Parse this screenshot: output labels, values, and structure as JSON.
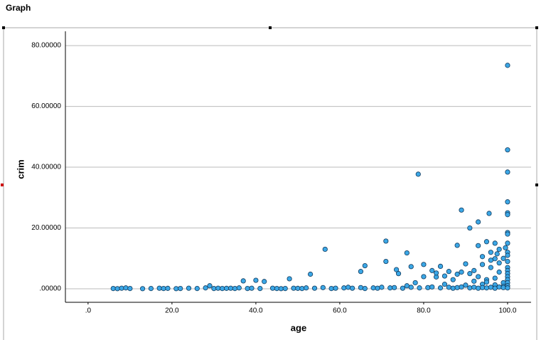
{
  "chart_data": {
    "type": "scatter",
    "title": "Graph",
    "xlabel": "age",
    "ylabel": "crim",
    "x": [
      100,
      100,
      100,
      78.7,
      100,
      100,
      100,
      95.6,
      89,
      91,
      93,
      100,
      100,
      100,
      97,
      95,
      71,
      56.5,
      76,
      88,
      93,
      98,
      96,
      100,
      100,
      99,
      94,
      97,
      90,
      84,
      86,
      82,
      80,
      77,
      73.5,
      74,
      65,
      66,
      71,
      53,
      48,
      40,
      37,
      42,
      29,
      88,
      91,
      93,
      95,
      97,
      99,
      100,
      100,
      100,
      100,
      100,
      100,
      100,
      100,
      96,
      98,
      92,
      89,
      85,
      83,
      80,
      78,
      76,
      85,
      90,
      94,
      97,
      99,
      83,
      87,
      92,
      95,
      98,
      94,
      96,
      97.5,
      99.5,
      6,
      7,
      8,
      9,
      10,
      13,
      15,
      17,
      18,
      19,
      21,
      22,
      24,
      26,
      28,
      30,
      31,
      32,
      33,
      34,
      35,
      36,
      38,
      39,
      41,
      44,
      45,
      46,
      47,
      49,
      50,
      51,
      52,
      54,
      56,
      58,
      59,
      61,
      62,
      63,
      65,
      66,
      68,
      69,
      70,
      72,
      73,
      75,
      77,
      79,
      81,
      82,
      84,
      86,
      87,
      88,
      89,
      91,
      92,
      93,
      94,
      95,
      96,
      97,
      98,
      99,
      100
    ],
    "values": [
      73.5,
      45.7,
      38.4,
      37.7,
      28.6,
      25,
      24.4,
      24.8,
      25.9,
      20,
      22,
      18.5,
      18,
      15,
      15,
      15.5,
      15.7,
      13,
      11.8,
      14.3,
      14.2,
      13,
      12,
      12,
      11,
      10,
      10.6,
      9.9,
      8.2,
      7.4,
      5.7,
      6,
      8,
      7.3,
      6.3,
      5,
      5.7,
      7.6,
      9,
      4.8,
      3.3,
      2.8,
      2.6,
      2.4,
      1,
      4.8,
      5,
      4,
      3,
      3.5,
      2,
      9,
      7,
      6,
      5,
      4,
      3,
      2,
      1,
      7,
      8.5,
      6,
      5.5,
      4.2,
      3.9,
      4,
      2,
      1,
      1.5,
      1.2,
      1.5,
      1.3,
      0.8,
      5.2,
      3,
      2.5,
      2.2,
      5.5,
      8,
      9.4,
      11.5,
      13.5,
      0.1,
      0.05,
      0.2,
      0.3,
      0.1,
      0.05,
      0.1,
      0.2,
      0.1,
      0.15,
      0.05,
      0.1,
      0.2,
      0.1,
      0.3,
      0.1,
      0.2,
      0.1,
      0.15,
      0.2,
      0.1,
      0.3,
      0.1,
      0.2,
      0.1,
      0.2,
      0.1,
      0.05,
      0.1,
      0.2,
      0.15,
      0.1,
      0.3,
      0.2,
      0.4,
      0.1,
      0.2,
      0.3,
      0.5,
      0.2,
      0.4,
      0.1,
      0.3,
      0.2,
      0.5,
      0.3,
      0.4,
      0.2,
      0.5,
      0.3,
      0.4,
      0.6,
      0.3,
      0.5,
      0.2,
      0.4,
      0.6,
      0.3,
      0.5,
      0.2,
      0.4,
      0.3,
      0.5,
      0.2,
      0.6,
      0.4,
      0.3
    ],
    "color": "#3ba7e6",
    "xlim": [
      -5.4,
      105.6
    ],
    "ylim": [
      -4.44,
      84.7
    ],
    "xticks": [
      {
        "value": 0,
        "label": ".0"
      },
      {
        "value": 20,
        "label": "20.0"
      },
      {
        "value": 40,
        "label": "40.0"
      },
      {
        "value": 60,
        "label": "60.0"
      },
      {
        "value": 80,
        "label": "80.0"
      },
      {
        "value": 100,
        "label": "100.0"
      }
    ],
    "yticks": [
      {
        "value": 0,
        "label": ".00000"
      },
      {
        "value": 20,
        "label": "20.00000"
      },
      {
        "value": 40,
        "label": "40.00000"
      },
      {
        "value": 60,
        "label": "60.00000"
      },
      {
        "value": 80,
        "label": "80.00000"
      }
    ],
    "grid": true
  }
}
